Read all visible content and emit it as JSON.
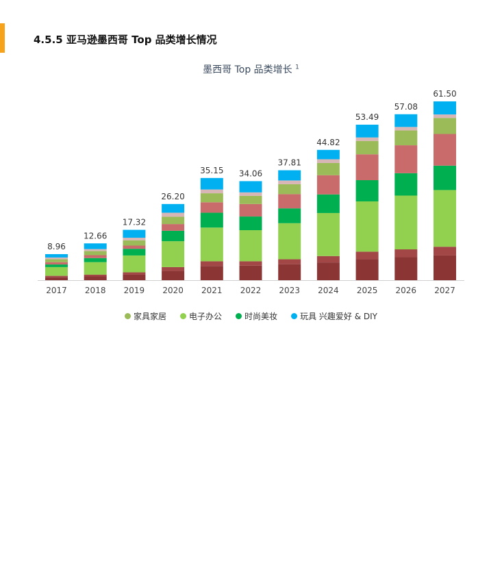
{
  "page": {
    "section_heading": "4.5.5 亚马逊墨西哥 Top 品类增长情况"
  },
  "chart_data": {
    "type": "bar",
    "stacked": true,
    "title": "墨西哥 Top 品类增长",
    "title_sup": "1",
    "categories": [
      "2017",
      "2018",
      "2019",
      "2020",
      "2021",
      "2022",
      "2023",
      "2024",
      "2025",
      "2026",
      "2027"
    ],
    "totals": [
      8.96,
      12.66,
      17.32,
      26.2,
      35.15,
      34.06,
      37.81,
      44.82,
      53.49,
      57.08,
      61.5
    ],
    "series": [
      {
        "color": "#8b3535",
        "values": [
          1.0,
          1.3,
          1.9,
          3.2,
          4.9,
          5.0,
          5.5,
          6.1,
          7.2,
          7.9,
          8.5
        ]
      },
      {
        "color": "#a24646",
        "values": [
          0.5,
          0.6,
          0.8,
          1.3,
          1.6,
          1.5,
          1.7,
          2.2,
          2.6,
          2.7,
          3.0
        ]
      },
      {
        "name": "电子办公",
        "color": "#92d050",
        "values": [
          3.0,
          4.3,
          5.8,
          8.9,
          11.6,
          10.7,
          12.4,
          14.8,
          17.3,
          18.5,
          19.5
        ]
      },
      {
        "name": "时尚美妆",
        "color": "#00b050",
        "values": [
          0.9,
          1.4,
          2.3,
          3.6,
          5.1,
          4.7,
          5.1,
          6.4,
          7.3,
          7.7,
          8.4
        ]
      },
      {
        "color": "#c96b6b",
        "values": [
          0.8,
          1.0,
          1.1,
          2.3,
          3.6,
          4.3,
          4.9,
          6.6,
          8.9,
          9.6,
          10.9
        ]
      },
      {
        "name": "家具家居",
        "color": "#9bbb59",
        "values": [
          1.0,
          1.4,
          1.8,
          2.5,
          3.1,
          2.8,
          3.4,
          4.2,
          4.6,
          5.1,
          5.5
        ]
      },
      {
        "color": "#d9b6b6",
        "values": [
          0.6,
          0.7,
          0.9,
          1.4,
          1.3,
          1.2,
          1.3,
          1.3,
          1.2,
          1.2,
          1.2
        ]
      },
      {
        "name": "玩具 兴趣爱好 & DIY",
        "color": "#00b0f0",
        "values": [
          1.16,
          1.96,
          2.72,
          3.0,
          3.95,
          3.86,
          3.51,
          3.22,
          4.39,
          4.38,
          4.5
        ]
      }
    ],
    "legend": [
      {
        "label": "家具家居",
        "color": "#9bbb59"
      },
      {
        "label": "电子办公",
        "color": "#92d050"
      },
      {
        "label": "时尚美妆",
        "color": "#00b050"
      },
      {
        "label": "玩具 兴趣爱好 & DIY",
        "color": "#00b0f0"
      }
    ],
    "ylim": [
      0,
      61.5
    ],
    "grid": false,
    "legend_position": "bottom"
  }
}
